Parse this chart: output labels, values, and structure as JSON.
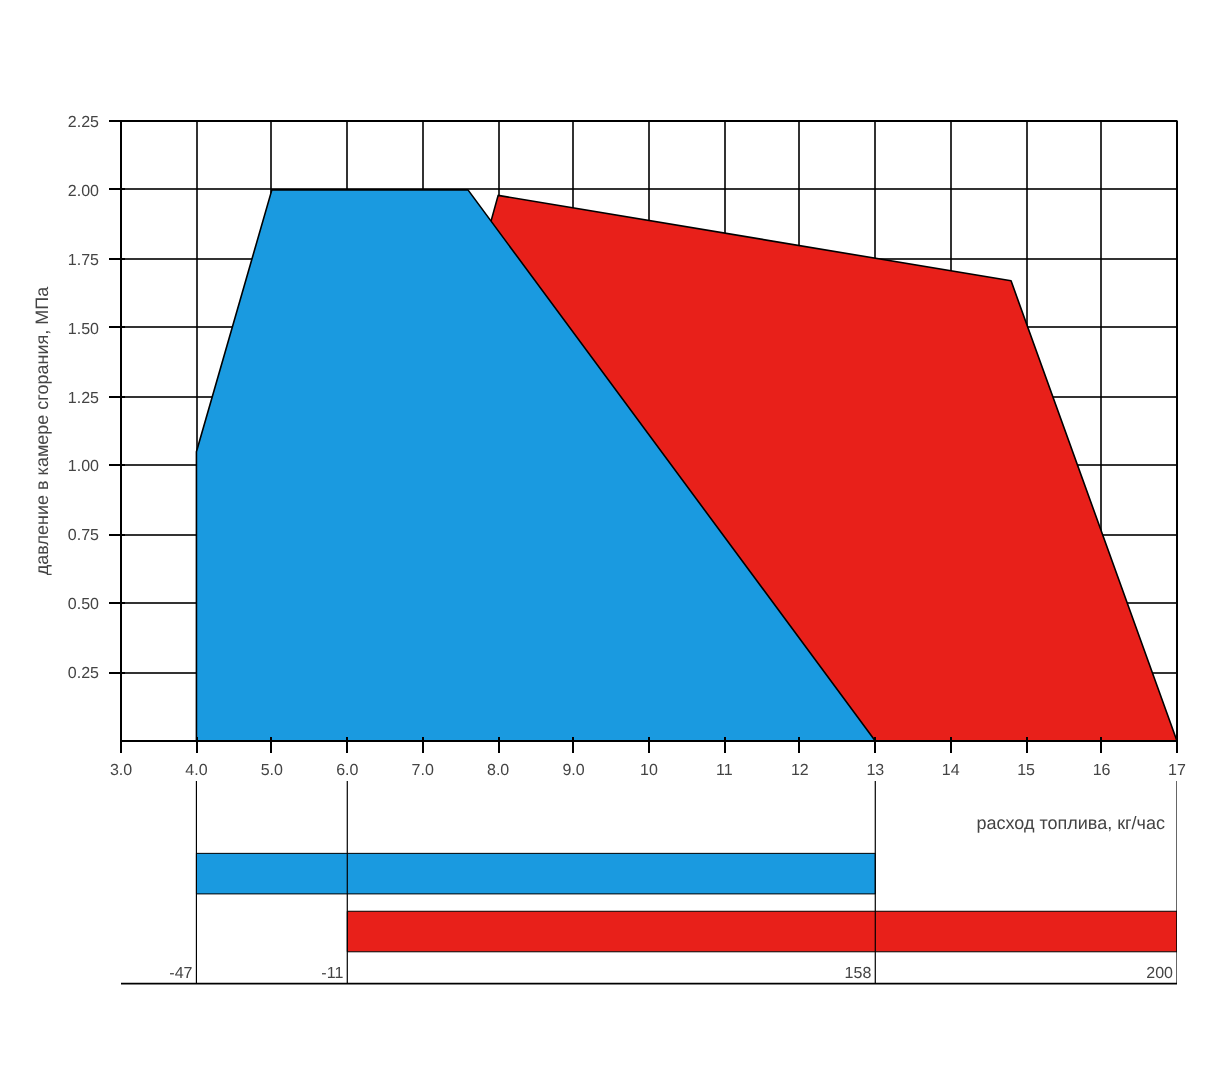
{
  "chart_data": [
    {
      "type": "area",
      "ylabel": "давление в камере сгорания, МПа",
      "xlim": [
        3,
        17
      ],
      "xticks": [
        {
          "value": 3,
          "label": "3.0"
        },
        {
          "value": 4,
          "label": "4.0"
        },
        {
          "value": 5,
          "label": "5.0"
        },
        {
          "value": 6,
          "label": "6.0"
        },
        {
          "value": 7,
          "label": "7.0"
        },
        {
          "value": 8,
          "label": "8.0"
        },
        {
          "value": 9,
          "label": "9.0"
        },
        10,
        11,
        12,
        13,
        14,
        15,
        16,
        17
      ],
      "ylim": [
        0,
        2.25
      ],
      "yticks": [
        0.25,
        {
          "value": 0.5,
          "label": "0.50"
        },
        0.75,
        {
          "value": 1.0,
          "label": "1.00"
        },
        1.25,
        {
          "value": 1.5,
          "label": "1.50"
        },
        1.75,
        {
          "value": 2.0,
          "label": "2.00"
        },
        2.25
      ],
      "grid": true,
      "series": [
        {
          "color": "#e8201a",
          "x": [
            6,
            8,
            14.8,
            17
          ],
          "values": [
            0,
            1.98,
            1.67,
            0
          ]
        },
        {
          "color": "#1a9ae0",
          "x": [
            4,
            4,
            5,
            7.6,
            13
          ],
          "values": [
            0,
            1.05,
            2.0,
            2.0,
            0
          ]
        }
      ]
    },
    {
      "type": "bar",
      "orientation": "horizontal",
      "xlabel": "расход топлива, кг/час",
      "categories": [
        null,
        null
      ],
      "xlim": [
        3,
        17
      ],
      "tick_labels": false,
      "grid": "x",
      "xticks": [
        {
          "value": 4,
          "label": null
        },
        {
          "value": 6,
          "label": null
        },
        {
          "value": 13,
          "label": null
        },
        {
          "value": 17,
          "label": null
        }
      ],
      "base": [
        4,
        6
      ],
      "values": [
        9,
        11
      ],
      "colors": [
        "#1a9ae0",
        "#e8201a"
      ],
      "annotations": [
        "-47",
        "-11",
        "158",
        "200"
      ]
    }
  ]
}
